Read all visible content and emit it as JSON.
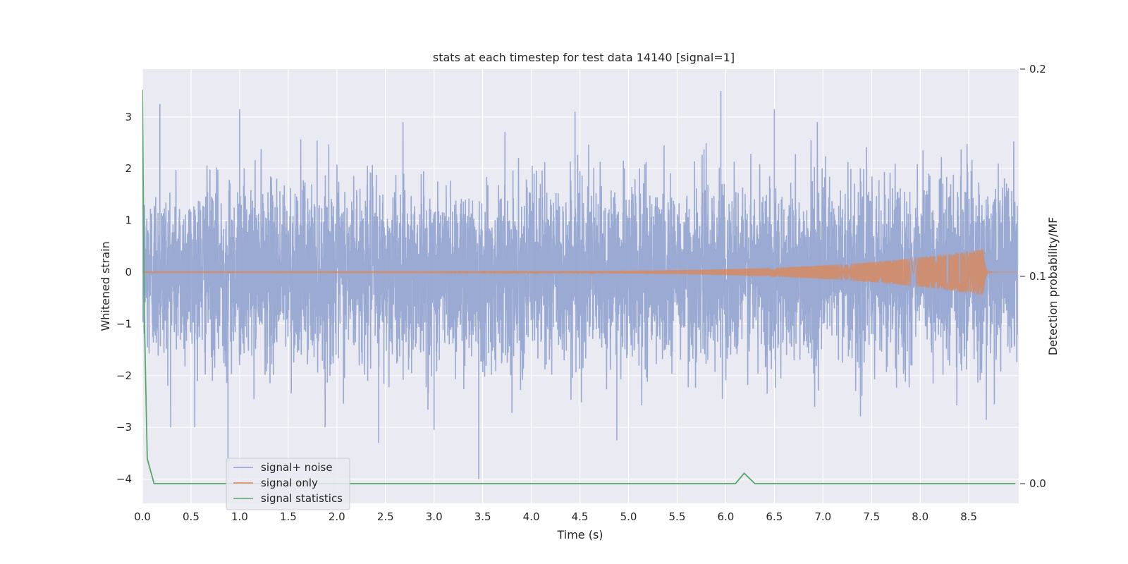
{
  "chart_data": {
    "type": "line",
    "title": "stats at each timestep for test data 14140 [signal=1]",
    "xlabel": "Time (s)",
    "ylabel": "Whitened strain",
    "y2label": "Detection probability/MF",
    "xlim": [
      0.0,
      9.0
    ],
    "ylim": [
      -4.35,
      3.85
    ],
    "y2lim": [
      -0.009,
      0.2
    ],
    "xticks": [
      "0.0",
      "0.5",
      "1.0",
      "1.5",
      "2.0",
      "2.5",
      "3.0",
      "3.5",
      "4.0",
      "4.5",
      "5.0",
      "5.5",
      "6.0",
      "6.5",
      "7.0",
      "7.5",
      "8.0",
      "8.5"
    ],
    "yticks": [
      "3",
      "2",
      "1",
      "0",
      "−1",
      "−2",
      "−3",
      "−4"
    ],
    "y2ticks": [
      "0.2",
      "0.1",
      "0.0"
    ],
    "grid": true,
    "legend_position": "lower-left",
    "colors": {
      "signal_noise": "#8c9fcc",
      "signal_only": "#dd8452",
      "signal_stats": "#55a868",
      "background": "#eaeaf2"
    },
    "series": [
      {
        "name": "signal+ noise",
        "axis": "left",
        "description": "whitened strain with noise, amplitude mostly within about ±2.3, sampled at 2048 Hz for 9 s",
        "envelope_sigma": 0.85,
        "peaks": [
          {
            "x": 0.18,
            "y": 3.25
          },
          {
            "x": 1.0,
            "y": 3.15
          },
          {
            "x": 4.45,
            "y": 3.1
          },
          {
            "x": 5.95,
            "y": 3.5
          },
          {
            "x": 6.5,
            "y": 3.15
          },
          {
            "x": 0.88,
            "y": -4.0
          },
          {
            "x": 3.46,
            "y": -4.0
          },
          {
            "x": 2.43,
            "y": -3.3
          },
          {
            "x": 4.88,
            "y": -3.25
          },
          {
            "x": 3.0,
            "y": -3.05
          }
        ]
      },
      {
        "name": "signal only",
        "axis": "left",
        "description": "chirp waveform growing in amplitude, merger near t=8.65 s",
        "chirp": {
          "start": 0.0,
          "merger": 8.65,
          "end": 9.0,
          "peak_amplitude": 0.45,
          "start_amplitude": 0.01
        }
      },
      {
        "name": "signal statistics",
        "axis": "right",
        "x": [
          0.0,
          0.02,
          0.05,
          0.12,
          6.1,
          6.19,
          6.3,
          8.98
        ],
        "y": [
          0.19,
          0.08,
          0.012,
          0.0,
          0.0,
          0.005,
          0.0,
          0.0
        ]
      }
    ]
  }
}
